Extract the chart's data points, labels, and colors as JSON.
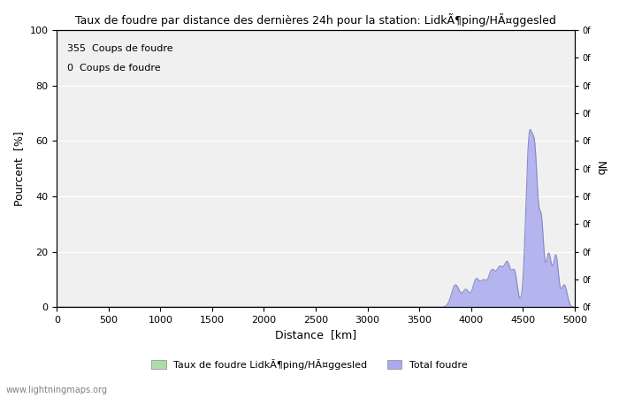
{
  "title": "Taux de foudre par distance des dernières 24h pour la station: LidkÃ¶ping/HÃ¤ggesled",
  "xlabel": "Distance  [km]",
  "ylabel_left": "Pourcent  [%]",
  "ylabel_right": "Nb",
  "legend_label1": "Taux de foudre LidkÃ¶ping/HÃ¤ggesled",
  "legend_label2": "Total foudre",
  "annotation1": "355  Coups de foudre",
  "annotation2": "0  Coups de foudre",
  "watermark": "www.lightningmaps.org",
  "xlim": [
    0,
    5000
  ],
  "ylim_left": [
    0,
    100
  ],
  "ylim_right": [
    0,
    100
  ],
  "xticks": [
    0,
    500,
    1000,
    1500,
    2000,
    2500,
    3000,
    3500,
    4000,
    4500,
    5000
  ],
  "yticks_left": [
    0,
    20,
    40,
    60,
    80,
    100
  ],
  "right_ticks": [
    0,
    10,
    20,
    30,
    40,
    50,
    60,
    70,
    80,
    90,
    100
  ],
  "right_tick_labels": [
    "0f",
    "0f",
    "0f",
    "0f",
    "0f",
    "0f",
    "0f",
    "0f",
    "0f",
    "0f",
    "0f"
  ],
  "background_color": "#ffffff",
  "plot_bg_color": "#f0f0f0",
  "grid_color": "#ffffff",
  "color_green": "#aaddaa",
  "color_blue": "#aaaaee",
  "color_blue_line": "#8888cc"
}
